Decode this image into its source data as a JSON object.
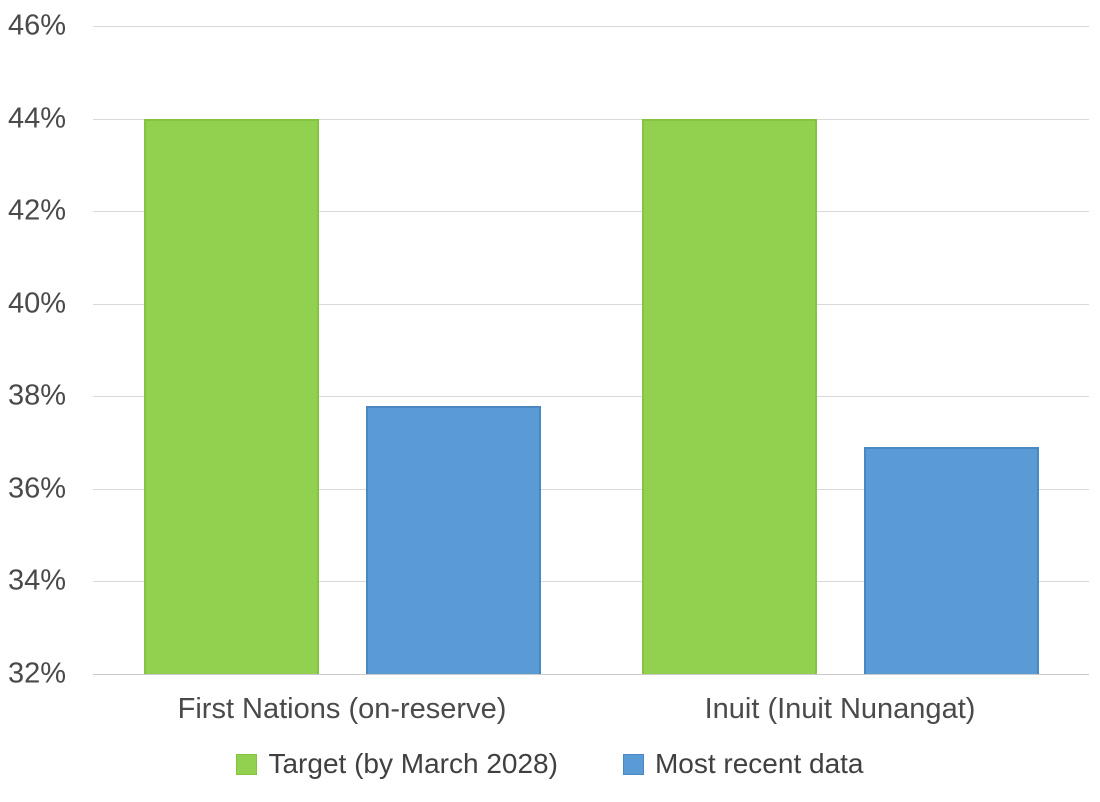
{
  "chart_data": {
    "type": "bar",
    "title": "",
    "categories": [
      "First Nations (on-reserve)",
      "Inuit (Inuit Nunangat)"
    ],
    "series": [
      {
        "name": "Target (by March 2028)",
        "values": [
          44,
          44
        ],
        "color": "#92d050",
        "border_color": "#84c43f"
      },
      {
        "name": "Most recent data",
        "values": [
          37.8,
          36.9
        ],
        "color": "#5b9bd5",
        "border_color": "#4a88c4"
      }
    ],
    "xlabel": "",
    "ylabel": "",
    "ylim": [
      32,
      46
    ],
    "ytick_step": 2,
    "ytick_labels": [
      "46%",
      "44%",
      "42%",
      "40%",
      "38%",
      "36%",
      "34%",
      "32%"
    ],
    "grid": true,
    "legend_position": "bottom"
  },
  "colors": {
    "background": "#ffffff",
    "gridline": "#d9d9d9",
    "axis_line": "#c9c9c9",
    "tick_text": "#4a4a4a",
    "legend_text": "#404040"
  }
}
